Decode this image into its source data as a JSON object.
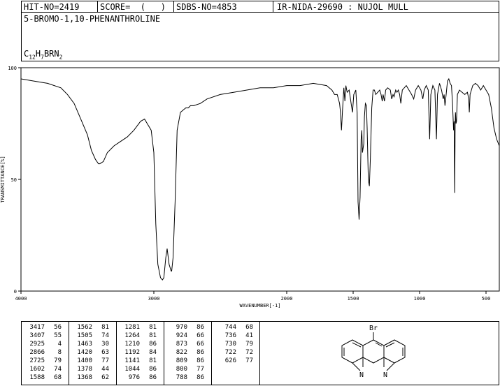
{
  "header": {
    "hit_no": "HIT-NO=2419",
    "score": "SCORE=  (   )",
    "sdbs_no": "SDBS-NO=4853",
    "ir_nida": "IR-NIDA-29690 : NUJOL MULL"
  },
  "compound": {
    "name": "5-BROMO-1,10-PHENANTHROLINE",
    "formula_parts": [
      "C",
      "12",
      "H",
      "7",
      "BRN",
      "2"
    ]
  },
  "chart_data": {
    "type": "line",
    "xlabel": "WAVENUMBER[-1]",
    "ylabel": "TRANSMITTANCE[%]",
    "xlim": [
      4000,
      400
    ],
    "ylim": [
      0,
      100
    ],
    "x_ticks": [
      4000,
      3000,
      2000,
      1500,
      1000,
      500
    ],
    "y_ticks": [
      0,
      50,
      100
    ],
    "series": [
      {
        "points": [
          [
            4000,
            95
          ],
          [
            3900,
            94
          ],
          [
            3800,
            93
          ],
          [
            3700,
            91
          ],
          [
            3650,
            88
          ],
          [
            3600,
            84
          ],
          [
            3550,
            77
          ],
          [
            3500,
            70
          ],
          [
            3470,
            63
          ],
          [
            3440,
            59
          ],
          [
            3417,
            57
          ],
          [
            3407,
            57
          ],
          [
            3380,
            58
          ],
          [
            3350,
            62
          ],
          [
            3300,
            65
          ],
          [
            3250,
            67
          ],
          [
            3200,
            69
          ],
          [
            3150,
            72
          ],
          [
            3100,
            76
          ],
          [
            3070,
            77
          ],
          [
            3050,
            75
          ],
          [
            3020,
            72
          ],
          [
            3000,
            62
          ],
          [
            2985,
            30
          ],
          [
            2970,
            12
          ],
          [
            2950,
            6
          ],
          [
            2935,
            5
          ],
          [
            2925,
            6
          ],
          [
            2910,
            15
          ],
          [
            2900,
            19
          ],
          [
            2885,
            12
          ],
          [
            2870,
            9
          ],
          [
            2866,
            9
          ],
          [
            2855,
            15
          ],
          [
            2840,
            40
          ],
          [
            2825,
            72
          ],
          [
            2800,
            80
          ],
          [
            2780,
            81
          ],
          [
            2760,
            82
          ],
          [
            2740,
            82
          ],
          [
            2725,
            83
          ],
          [
            2700,
            83
          ],
          [
            2650,
            84
          ],
          [
            2600,
            86
          ],
          [
            2500,
            88
          ],
          [
            2400,
            89
          ],
          [
            2300,
            90
          ],
          [
            2200,
            91
          ],
          [
            2100,
            91
          ],
          [
            2000,
            92
          ],
          [
            1900,
            92
          ],
          [
            1800,
            93
          ],
          [
            1700,
            92
          ],
          [
            1660,
            90
          ],
          [
            1640,
            88
          ],
          [
            1620,
            88
          ],
          [
            1602,
            84
          ],
          [
            1595,
            80
          ],
          [
            1588,
            72
          ],
          [
            1580,
            81
          ],
          [
            1570,
            91
          ],
          [
            1562,
            85
          ],
          [
            1555,
            92
          ],
          [
            1545,
            89
          ],
          [
            1530,
            90
          ],
          [
            1515,
            84
          ],
          [
            1505,
            80
          ],
          [
            1495,
            88
          ],
          [
            1480,
            90
          ],
          [
            1470,
            80
          ],
          [
            1463,
            40
          ],
          [
            1455,
            32
          ],
          [
            1448,
            42
          ],
          [
            1440,
            68
          ],
          [
            1435,
            72
          ],
          [
            1430,
            62
          ],
          [
            1420,
            66
          ],
          [
            1415,
            78
          ],
          [
            1408,
            84
          ],
          [
            1400,
            83
          ],
          [
            1395,
            73
          ],
          [
            1386,
            50
          ],
          [
            1378,
            47
          ],
          [
            1370,
            60
          ],
          [
            1368,
            65
          ],
          [
            1360,
            82
          ],
          [
            1350,
            90
          ],
          [
            1340,
            90
          ],
          [
            1330,
            88
          ],
          [
            1300,
            90
          ],
          [
            1290,
            88
          ],
          [
            1281,
            85
          ],
          [
            1275,
            88
          ],
          [
            1264,
            85
          ],
          [
            1255,
            90
          ],
          [
            1240,
            91
          ],
          [
            1220,
            90
          ],
          [
            1210,
            86
          ],
          [
            1200,
            88
          ],
          [
            1192,
            87
          ],
          [
            1180,
            90
          ],
          [
            1170,
            89
          ],
          [
            1160,
            90
          ],
          [
            1150,
            88
          ],
          [
            1141,
            84
          ],
          [
            1130,
            90
          ],
          [
            1100,
            92
          ],
          [
            1080,
            90
          ],
          [
            1060,
            88
          ],
          [
            1044,
            86
          ],
          [
            1030,
            90
          ],
          [
            1010,
            92
          ],
          [
            990,
            90
          ],
          [
            976,
            86
          ],
          [
            965,
            90
          ],
          [
            950,
            92
          ],
          [
            935,
            90
          ],
          [
            924,
            68
          ],
          [
            915,
            88
          ],
          [
            900,
            92
          ],
          [
            885,
            90
          ],
          [
            873,
            68
          ],
          [
            865,
            88
          ],
          [
            850,
            93
          ],
          [
            835,
            90
          ],
          [
            822,
            86
          ],
          [
            815,
            88
          ],
          [
            809,
            83
          ],
          [
            800,
            88
          ],
          [
            790,
            94
          ],
          [
            780,
            95
          ],
          [
            770,
            93
          ],
          [
            760,
            92
          ],
          [
            752,
            84
          ],
          [
            744,
            72
          ],
          [
            740,
            76
          ],
          [
            736,
            44
          ],
          [
            732,
            75
          ],
          [
            730,
            80
          ],
          [
            726,
            75
          ],
          [
            722,
            76
          ],
          [
            715,
            88
          ],
          [
            700,
            90
          ],
          [
            680,
            89
          ],
          [
            660,
            88
          ],
          [
            640,
            89
          ],
          [
            630,
            86
          ],
          [
            626,
            80
          ],
          [
            620,
            88
          ],
          [
            600,
            92
          ],
          [
            580,
            93
          ],
          [
            560,
            92
          ],
          [
            540,
            90
          ],
          [
            520,
            92
          ],
          [
            500,
            90
          ],
          [
            480,
            88
          ],
          [
            460,
            82
          ],
          [
            440,
            73
          ],
          [
            420,
            68
          ],
          [
            400,
            65
          ]
        ]
      }
    ]
  },
  "peak_table": [
    [
      [
        "3417",
        "56"
      ],
      [
        "3407",
        "55"
      ],
      [
        "2925",
        "4"
      ],
      [
        "2866",
        "8"
      ],
      [
        "2725",
        "79"
      ],
      [
        "1602",
        "74"
      ],
      [
        "1588",
        "68"
      ]
    ],
    [
      [
        "1562",
        "81"
      ],
      [
        "1505",
        "74"
      ],
      [
        "1463",
        "30"
      ],
      [
        "1420",
        "63"
      ],
      [
        "1400",
        "77"
      ],
      [
        "1378",
        "44"
      ],
      [
        "1368",
        "62"
      ]
    ],
    [
      [
        "1281",
        "81"
      ],
      [
        "1264",
        "81"
      ],
      [
        "1210",
        "86"
      ],
      [
        "1192",
        "84"
      ],
      [
        "1141",
        "81"
      ],
      [
        "1044",
        "86"
      ],
      [
        "976",
        "86"
      ]
    ],
    [
      [
        "970",
        "86"
      ],
      [
        "924",
        "66"
      ],
      [
        "873",
        "66"
      ],
      [
        "822",
        "86"
      ],
      [
        "809",
        "86"
      ],
      [
        "800",
        "77"
      ],
      [
        "788",
        "86"
      ]
    ],
    [
      [
        "744",
        "68"
      ],
      [
        "736",
        "41"
      ],
      [
        "730",
        "79"
      ],
      [
        "722",
        "72"
      ],
      [
        "626",
        "77"
      ]
    ]
  ],
  "structure": {
    "substituent": "Br",
    "nitrogen_1": "N",
    "nitrogen_2": "N"
  }
}
